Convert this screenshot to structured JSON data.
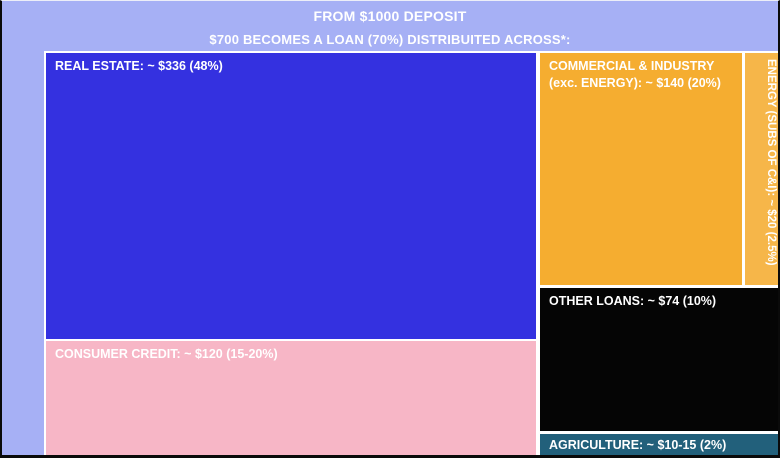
{
  "page": {
    "title": "FROM $1000 DEPOSIT",
    "subtitle": "$700 BECOMES A LOAN (70%) DISTRIBUITED ACROSS*:",
    "background_color": "#a6b0f5",
    "text_color": "#ffffff"
  },
  "chart_data": {
    "type": "treemap",
    "title": "FROM $1000 DEPOSIT",
    "subtitle": "$700 BECOMES A LOAN (70%) DISTRIBUITED ACROSS*:",
    "deposit_total": 1000,
    "loan_total": 700,
    "loan_share_pct": 70,
    "legend_position": "none",
    "items": [
      {
        "name": "Real estate",
        "display": "REAL ESTATE: ~ $336 (48%)",
        "value": 336,
        "value_text": "~ $336",
        "share": "48%",
        "color": "#3431e0"
      },
      {
        "name": "Consumer credit",
        "display": "CONSUMER CREDIT: ~ $120 (15-20%)",
        "value": 120,
        "value_text": "~ $120",
        "share": "15-20%",
        "color": "#f7b6c6"
      },
      {
        "name": "Commercial & industry (exc. energy)",
        "display": "COMMERCIAL & INDUSTRY (exc. ENERGY): ~ $140 (20%)",
        "value": 140,
        "value_text": "~ $140",
        "share": "20%",
        "color": "#f5ad30"
      },
      {
        "name": "Energy (subs of C&I)",
        "display": "ENERGY (SUBS OF C&I): ~ $20 (2.5%)",
        "value": 20,
        "value_text": "~ $20",
        "share": "2.5%",
        "color": "#f6b649"
      },
      {
        "name": "Other loans",
        "display": "OTHER LOANS: ~ $74 (10%)",
        "value": 74,
        "value_text": "~ $74",
        "share": "10%",
        "color": "#050505"
      },
      {
        "name": "Agriculture",
        "display": "AGRICULTURE: ~ $10-15 (2%)",
        "value": 12.5,
        "value_text": "~ $10-15",
        "share": "2%",
        "color": "#22607b"
      }
    ]
  }
}
